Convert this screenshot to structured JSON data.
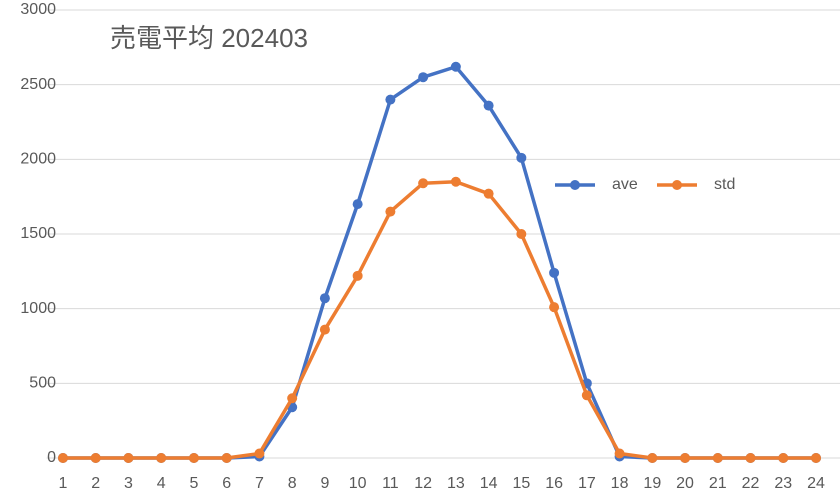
{
  "chart_data": {
    "type": "line",
    "title": "売電平均 202403",
    "categories": [
      "1",
      "2",
      "3",
      "4",
      "5",
      "6",
      "7",
      "8",
      "9",
      "10",
      "11",
      "12",
      "13",
      "14",
      "15",
      "16",
      "17",
      "18",
      "19",
      "20",
      "21",
      "22",
      "23",
      "24"
    ],
    "series": [
      {
        "name": "ave",
        "color": "#4472c4",
        "values": [
          0,
          0,
          0,
          0,
          0,
          0,
          10,
          340,
          1070,
          1700,
          2400,
          2550,
          2620,
          2360,
          2010,
          1240,
          500,
          10,
          0,
          0,
          0,
          0,
          0,
          0
        ]
      },
      {
        "name": "std",
        "color": "#ed7d31",
        "values": [
          0,
          0,
          0,
          0,
          0,
          0,
          30,
          400,
          860,
          1220,
          1650,
          1840,
          1850,
          1770,
          1500,
          1010,
          420,
          30,
          0,
          0,
          0,
          0,
          0,
          0
        ]
      }
    ],
    "ylim": [
      0,
      3000
    ],
    "yticks": [
      0,
      500,
      1000,
      1500,
      2000,
      2500,
      3000
    ],
    "grid": true
  }
}
